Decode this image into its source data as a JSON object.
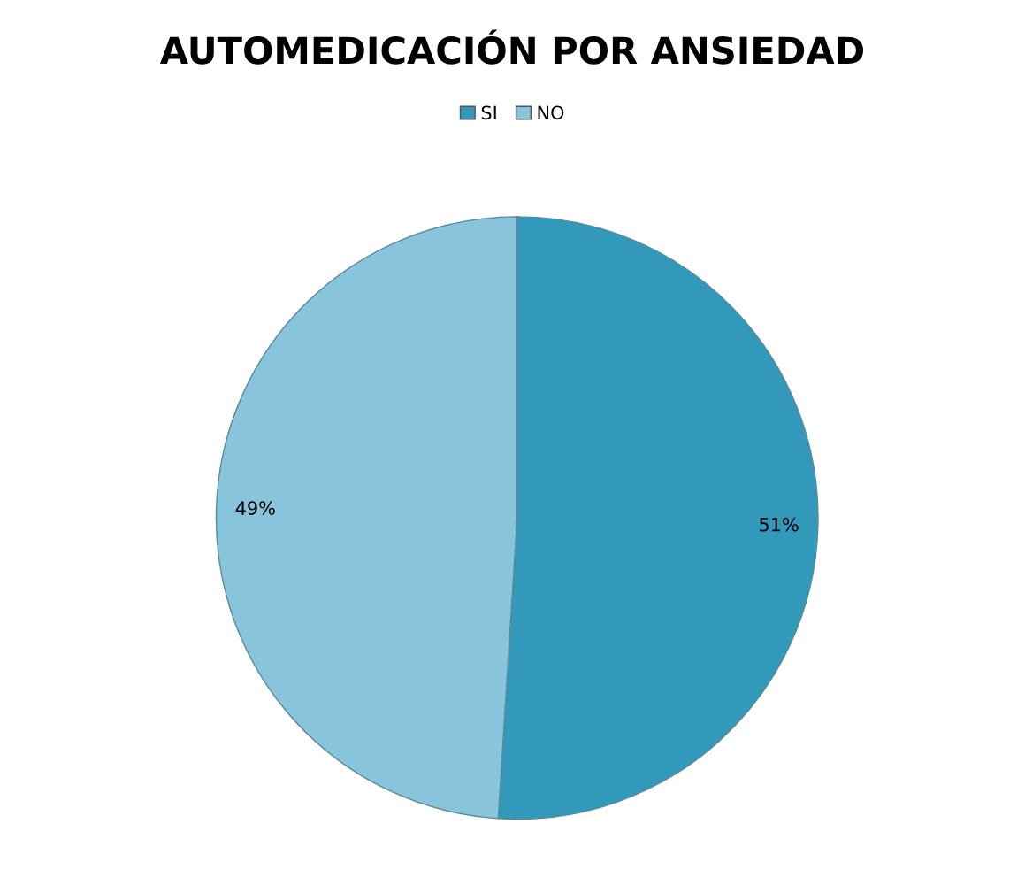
{
  "chart_data": {
    "type": "pie",
    "title": "AUTOMEDICACIÓN POR ANSIEDAD",
    "categories": [
      "SI",
      "NO"
    ],
    "values": [
      51,
      49
    ],
    "colors": [
      "#3399bb",
      "#88c4dc"
    ],
    "value_labels": [
      "51%",
      "49%"
    ],
    "legend": "top"
  }
}
